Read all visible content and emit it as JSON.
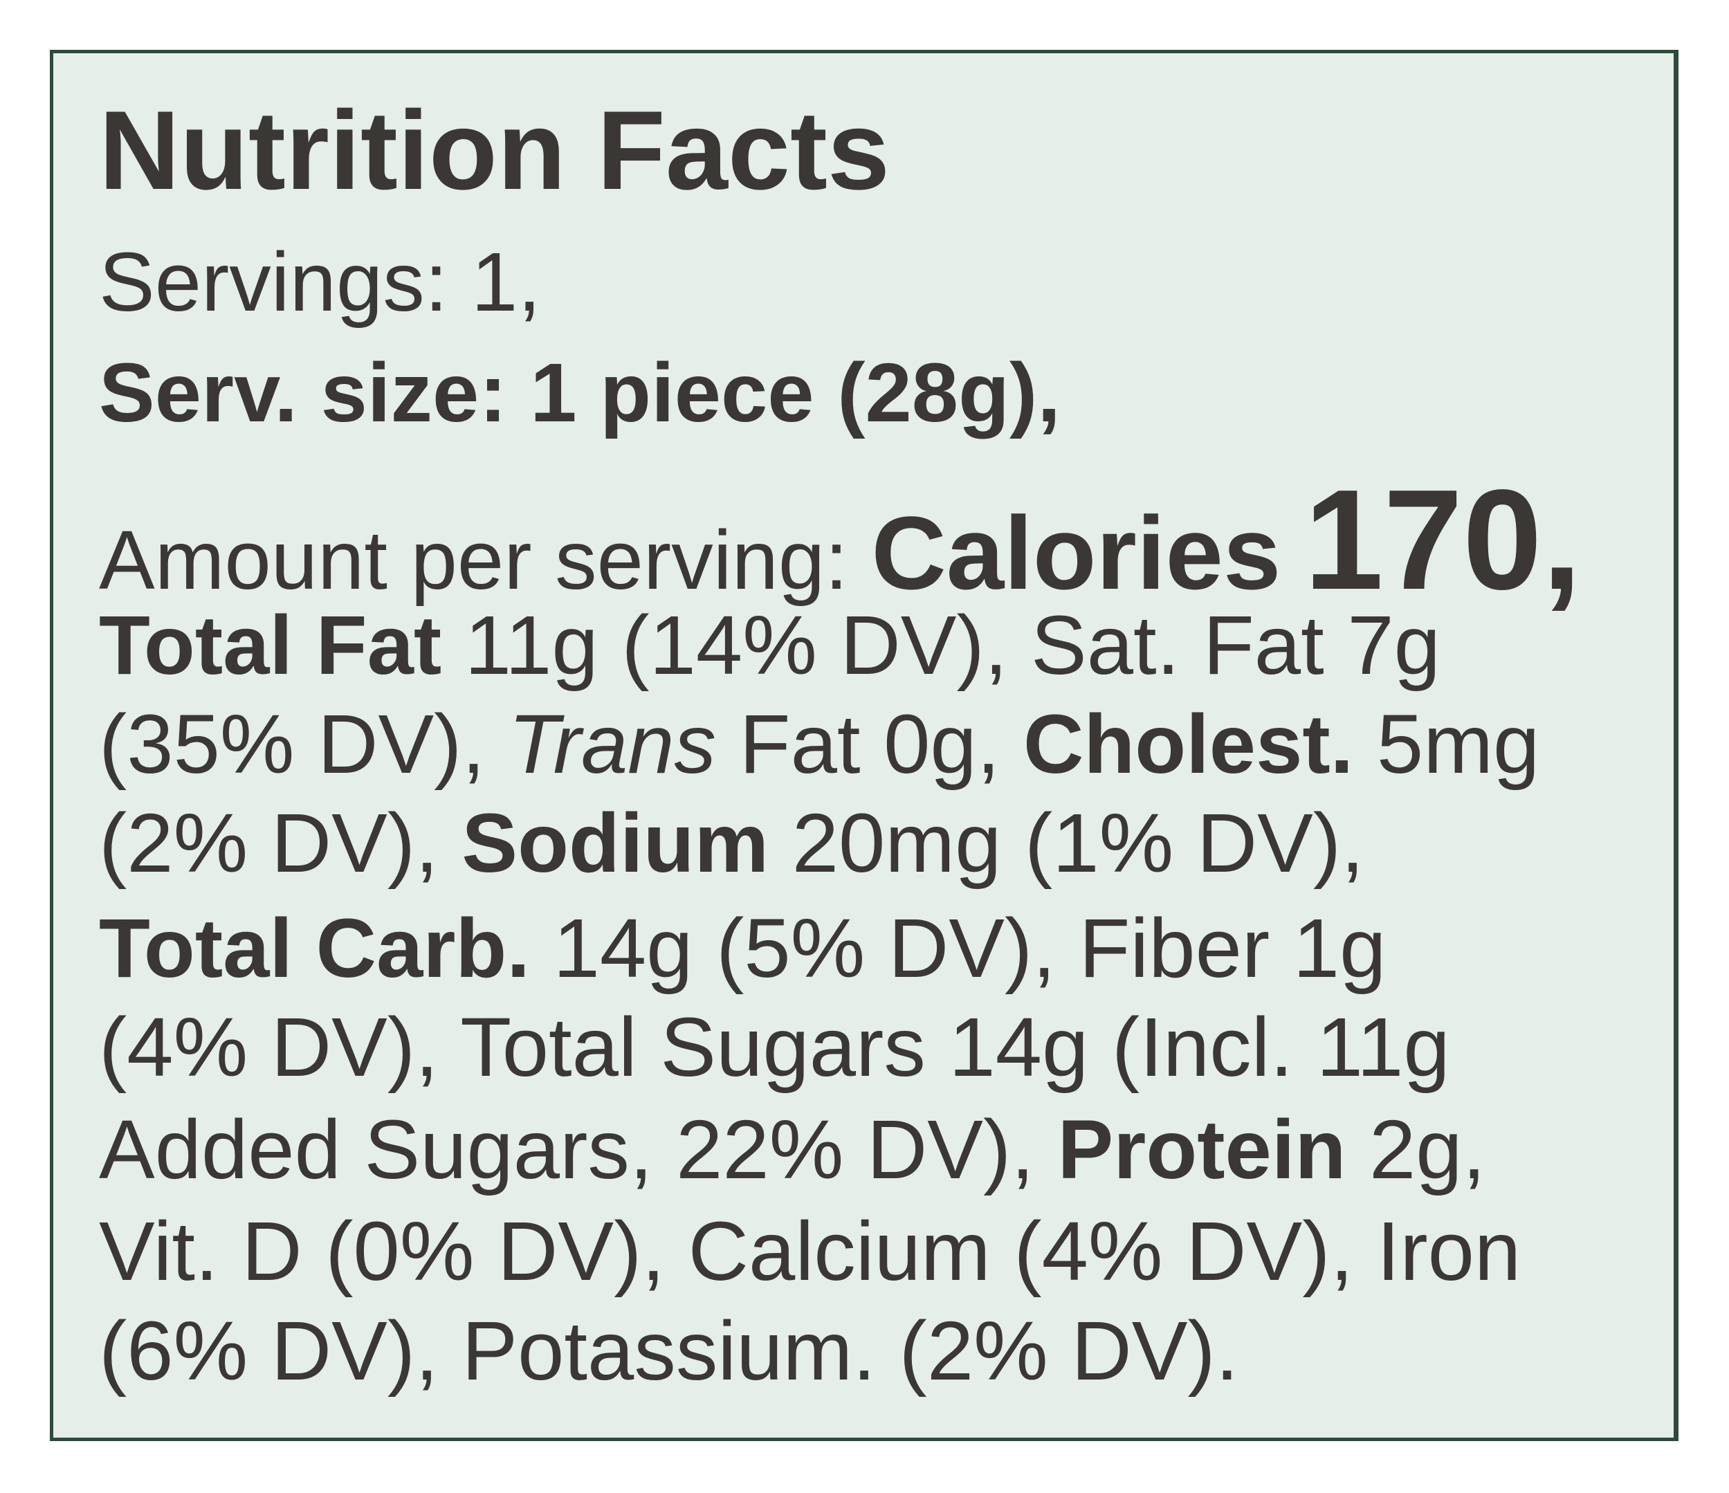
{
  "title": "Nutrition Facts",
  "lines": [
    [
      "Servings: 1,"
    ],
    [
      "Serv. size: 1 piece (28g),"
    ],
    [
      "Amount per serving:",
      "Calories",
      "170,"
    ],
    [
      "Total Fat",
      "11g (14% DV), Sat. Fat 7g"
    ],
    [
      "(35% DV),",
      "Trans",
      "Fat 0g,",
      "Cholest.",
      "5mg"
    ],
    [
      "(2% DV),",
      "Sodium",
      "20mg (1% DV),"
    ],
    [
      "Total Carb.",
      "14g (5% DV), Fiber 1g"
    ],
    [
      "(4% DV), Total Sugars 14g (Incl. 11g"
    ],
    [
      "Added Sugars, 22% DV),",
      "Protein",
      "2g,"
    ],
    [
      "Vit. D (0% DV), Calcium (4% DV), Iron"
    ],
    [
      "(6% DV), Potassium. (2% DV)."
    ]
  ]
}
